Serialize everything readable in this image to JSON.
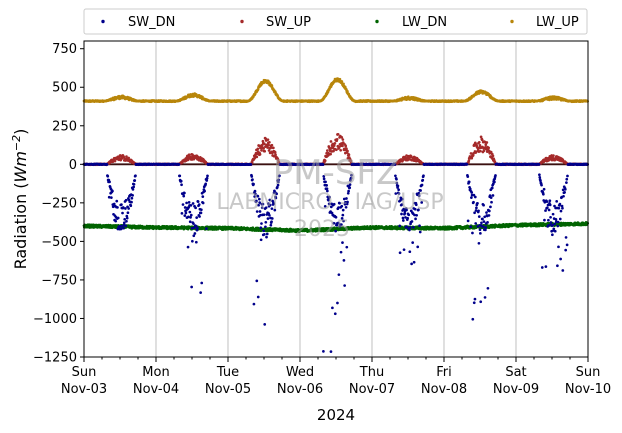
{
  "chart_data": {
    "type": "scatter",
    "title": "",
    "ylabel": "Radiation",
    "ylabel_unit_base": "Wm",
    "ylabel_unit_exp": "−2",
    "xlabel": "2024",
    "ylim": [
      -1250,
      800
    ],
    "yticks": [
      800,
      750,
      500,
      250,
      0,
      -250,
      -500,
      -750,
      -1000,
      -1250
    ],
    "ytick_labels": [
      "750",
      "500",
      "250",
      "0",
      "−250",
      "−500",
      "−750",
      "−1000",
      "−1250"
    ],
    "xlim_days": [
      "2024-11-03",
      "2024-11-10"
    ],
    "xtick_labels": [
      {
        "day": "Sun",
        "date": "Nov-03"
      },
      {
        "day": "Mon",
        "date": "Nov-04"
      },
      {
        "day": "Tue",
        "date": "Nov-05"
      },
      {
        "day": "Wed",
        "date": "Nov-06"
      },
      {
        "day": "Thu",
        "date": "Nov-07"
      },
      {
        "day": "Fri",
        "date": "Nov-08"
      },
      {
        "day": "Sat",
        "date": "Nov-09"
      },
      {
        "day": "Sun",
        "date": "Nov-10"
      }
    ],
    "grid": "vertical",
    "legend_placement": "top (outside)",
    "watermark": [
      "PM-SFZ",
      "LABMICRO - IAG/USP",
      "2025"
    ],
    "series": [
      {
        "name": "SW_DN",
        "color": "#00008b",
        "night_value": 0,
        "daily_min": [
          -420,
          -920,
          -1060,
          -1230,
          -650,
          -1010,
          -720
        ],
        "description_points": "daytime negative downward shortwave"
      },
      {
        "name": "SW_UP",
        "color": "#a52a2a",
        "night_value": 0,
        "daily_max": [
          60,
          70,
          170,
          200,
          60,
          180,
          60
        ]
      },
      {
        "name": "LW_DN",
        "color": "#006400",
        "values_daily_approx": [
          -400,
          -410,
          -415,
          -430,
          -410,
          -415,
          -395,
          -385
        ]
      },
      {
        "name": "LW_UP",
        "color": "#b8860b",
        "night_value": 410,
        "daily_max": [
          435,
          450,
          540,
          550,
          430,
          470,
          430
        ]
      }
    ]
  }
}
